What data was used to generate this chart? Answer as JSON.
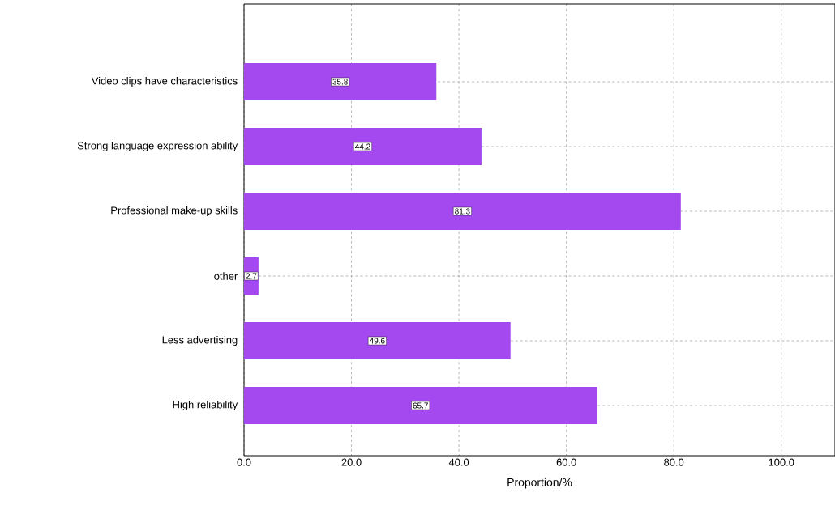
{
  "chart_data": {
    "type": "bar",
    "orientation": "horizontal",
    "xlabel": "Proportion/%",
    "categories": [
      "Video clips have characteristics",
      "Strong language expression ability",
      "Professional make-up skills",
      "other",
      "Less advertising",
      "High reliability"
    ],
    "values": [
      35.8,
      44.2,
      81.3,
      2.7,
      49.6,
      65.7
    ],
    "color": "#a449ef",
    "data_labels": true,
    "grid": true,
    "xlim": [
      0,
      110
    ],
    "xticks": [
      {
        "value": 0,
        "label": "0.0"
      },
      {
        "value": 20,
        "label": "20.0"
      },
      {
        "value": 40,
        "label": "40.0"
      },
      {
        "value": 60,
        "label": "60.0"
      },
      {
        "value": 80,
        "label": "80.0"
      },
      {
        "value": 100,
        "label": "100.0"
      }
    ]
  }
}
